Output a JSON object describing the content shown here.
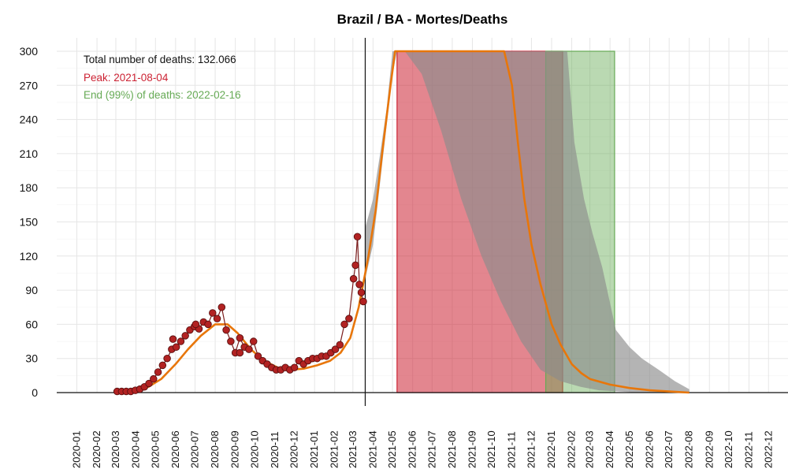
{
  "chart_data": {
    "type": "area",
    "title": "Brazil / BA - Mortes/Deaths",
    "xlabel": "",
    "ylabel": "",
    "ylim": [
      0,
      300
    ],
    "yticks": [
      0,
      30,
      60,
      90,
      120,
      150,
      180,
      210,
      240,
      270,
      300
    ],
    "xlim": [
      "2019-12-01",
      "2022-12-31"
    ],
    "grid": true,
    "xticks": [
      "2020-01",
      "2020-02",
      "2020-03",
      "2020-04",
      "2020-05",
      "2020-06",
      "2020-07",
      "2020-08",
      "2020-09",
      "2020-10",
      "2020-11",
      "2020-12",
      "2021-01",
      "2021-02",
      "2021-03",
      "2021-04",
      "2021-05",
      "2021-06",
      "2021-07",
      "2021-08",
      "2021-09",
      "2021-10",
      "2021-11",
      "2021-12",
      "2022-01",
      "2022-02",
      "2022-03",
      "2022-04",
      "2022-05",
      "2022-06",
      "2022-07",
      "2022-08",
      "2022-09",
      "2022-10",
      "2022-11",
      "2022-12"
    ],
    "current_date": "2021-03-20",
    "annotations": {
      "total": "Total number of deaths: 132.066",
      "peak": "Peak: 2021-08-04",
      "end": "End (99%) of deaths: 2022-02-16"
    },
    "peak_band": {
      "start": "2021-05-08",
      "end": "2022-01-18",
      "color": "#cc2233"
    },
    "end_band": {
      "start": "2021-12-23",
      "end": "2022-04-08",
      "color": "#66aa55"
    },
    "observed": {
      "x": [
        "2020-03-03",
        "2020-03-10",
        "2020-03-17",
        "2020-03-24",
        "2020-03-31",
        "2020-04-07",
        "2020-04-14",
        "2020-04-21",
        "2020-04-28",
        "2020-05-05",
        "2020-05-12",
        "2020-05-19",
        "2020-05-26",
        "2020-06-02",
        "2020-06-09",
        "2020-06-16",
        "2020-06-23",
        "2020-06-30",
        "2020-07-07",
        "2020-07-14",
        "2020-07-21",
        "2020-07-28",
        "2020-08-04",
        "2020-08-11",
        "2020-08-18",
        "2020-08-25",
        "2020-09-01",
        "2020-09-08",
        "2020-09-15",
        "2020-09-22",
        "2020-09-29",
        "2020-10-06",
        "2020-10-13",
        "2020-10-20",
        "2020-10-27",
        "2020-11-03",
        "2020-11-10",
        "2020-11-17",
        "2020-11-24",
        "2020-12-01",
        "2020-12-08",
        "2020-12-15",
        "2020-12-22",
        "2020-12-29",
        "2021-01-05",
        "2021-01-12",
        "2021-01-19",
        "2021-01-26",
        "2021-02-02",
        "2021-02-09",
        "2021-02-16",
        "2021-02-23",
        "2021-03-02",
        "2021-03-05",
        "2021-03-08",
        "2021-03-11",
        "2021-03-14",
        "2021-03-17"
      ],
      "y": [
        1,
        1,
        1,
        1,
        2,
        3,
        5,
        8,
        12,
        18,
        24,
        30,
        38,
        40,
        45,
        50,
        55,
        58,
        56,
        62,
        60,
        70,
        65,
        75,
        55,
        45,
        35,
        48,
        40,
        38,
        45,
        32,
        28,
        25,
        22,
        20,
        20,
        22,
        20,
        22,
        28,
        25,
        28,
        30,
        30,
        32,
        32,
        35,
        38,
        42,
        60,
        65,
        100,
        112,
        137,
        95,
        88,
        80
      ],
      "highlights": [
        {
          "x": "2020-05-28",
          "y": 47
        },
        {
          "x": "2020-07-02",
          "y": 60
        },
        {
          "x": "2020-09-08",
          "y": 35
        }
      ]
    },
    "fitted": {
      "x": [
        "2020-03-01",
        "2020-04-01",
        "2020-04-20",
        "2020-05-10",
        "2020-06-01",
        "2020-06-20",
        "2020-07-10",
        "2020-08-01",
        "2020-08-20",
        "2020-09-05",
        "2020-09-25",
        "2020-10-15",
        "2020-11-05",
        "2020-11-25",
        "2020-12-15",
        "2021-01-05",
        "2021-01-25",
        "2021-02-10",
        "2021-02-25",
        "2021-03-10",
        "2021-03-25",
        "2021-04-05",
        "2021-04-15",
        "2021-04-28",
        "2021-05-05",
        "2021-05-15",
        "2021-06-15",
        "2021-08-04",
        "2021-10-01",
        "2021-10-20",
        "2021-11-01",
        "2021-11-10",
        "2021-11-20",
        "2021-12-01",
        "2021-12-15",
        "2022-01-01",
        "2022-01-15",
        "2022-02-01",
        "2022-02-16",
        "2022-03-01",
        "2022-04-01",
        "2022-05-01",
        "2022-06-01",
        "2022-07-01",
        "2022-08-01"
      ],
      "y": [
        0,
        2,
        5,
        12,
        25,
        38,
        50,
        60,
        60,
        52,
        38,
        28,
        22,
        20,
        21,
        24,
        28,
        35,
        48,
        75,
        120,
        160,
        210,
        270,
        300,
        300,
        300,
        300,
        300,
        300,
        270,
        220,
        170,
        130,
        95,
        60,
        42,
        25,
        17,
        12,
        7,
        4,
        2,
        1,
        0
      ]
    },
    "band_upper": {
      "x": [
        "2021-03-20",
        "2021-04-01",
        "2021-04-12",
        "2021-04-22",
        "2021-05-01",
        "2021-05-08",
        "2022-01-25",
        "2022-02-05",
        "2022-02-20",
        "2022-03-05",
        "2022-03-20",
        "2022-04-10",
        "2022-05-01",
        "2022-05-20",
        "2022-06-15",
        "2022-07-10",
        "2022-08-01"
      ],
      "y": [
        145,
        170,
        210,
        250,
        300,
        300,
        300,
        220,
        170,
        140,
        110,
        55,
        40,
        30,
        20,
        10,
        3
      ]
    },
    "band_lower": {
      "x": [
        "2021-03-20",
        "2021-04-01",
        "2021-04-15",
        "2021-05-01",
        "2021-05-08",
        "2021-05-20",
        "2021-06-15",
        "2021-07-15",
        "2021-08-15",
        "2021-09-15",
        "2021-10-15",
        "2021-11-15",
        "2021-12-15",
        "2022-01-15",
        "2022-02-15",
        "2022-03-15",
        "2022-04-15",
        "2022-05-15",
        "2022-08-01"
      ],
      "y": [
        100,
        130,
        200,
        280,
        300,
        300,
        280,
        230,
        170,
        120,
        80,
        45,
        20,
        10,
        5,
        2,
        1,
        0,
        0
      ]
    }
  }
}
